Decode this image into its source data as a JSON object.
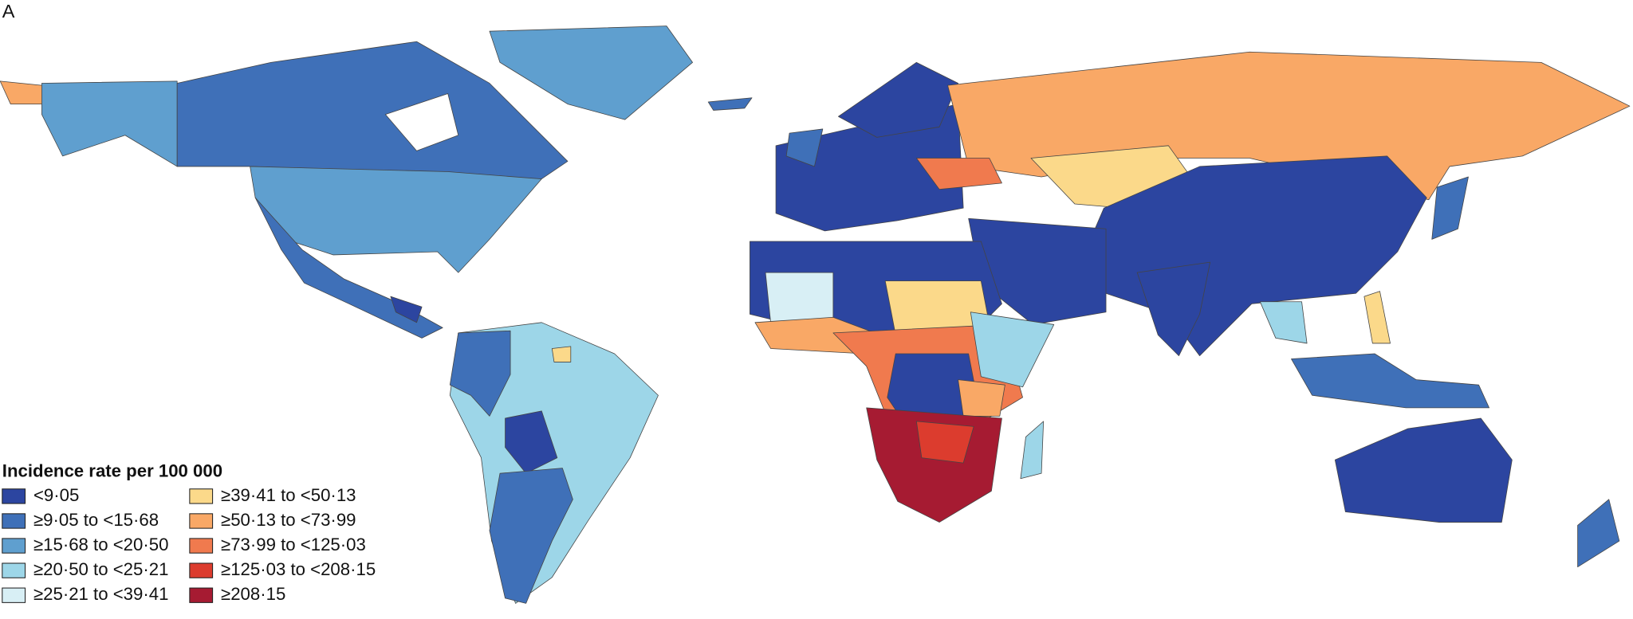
{
  "panel_label": "A",
  "legend": {
    "title": "Incidence rate per 100 000",
    "items": [
      {
        "label": "<9·05",
        "color": "#2c45a0"
      },
      {
        "label": "≥9·05 to <15·68",
        "color": "#3f70b8"
      },
      {
        "label": "≥15·68 to <20·50",
        "color": "#5f9fcf"
      },
      {
        "label": "≥20·50 to <25·21",
        "color": "#9dd6e8"
      },
      {
        "label": "≥25·21 to <39·41",
        "color": "#d8eff5"
      },
      {
        "label": "≥39·41 to <50·13",
        "color": "#fbd98a"
      },
      {
        "label": "≥50·13 to <73·99",
        "color": "#f9a866"
      },
      {
        "label": "≥73·99 to <125·03",
        "color": "#f07a4e"
      },
      {
        "label": "≥125·03 to <208·15",
        "color": "#dc3c2e"
      },
      {
        "label": "≥208·15",
        "color": "#a61b32"
      }
    ]
  }
}
